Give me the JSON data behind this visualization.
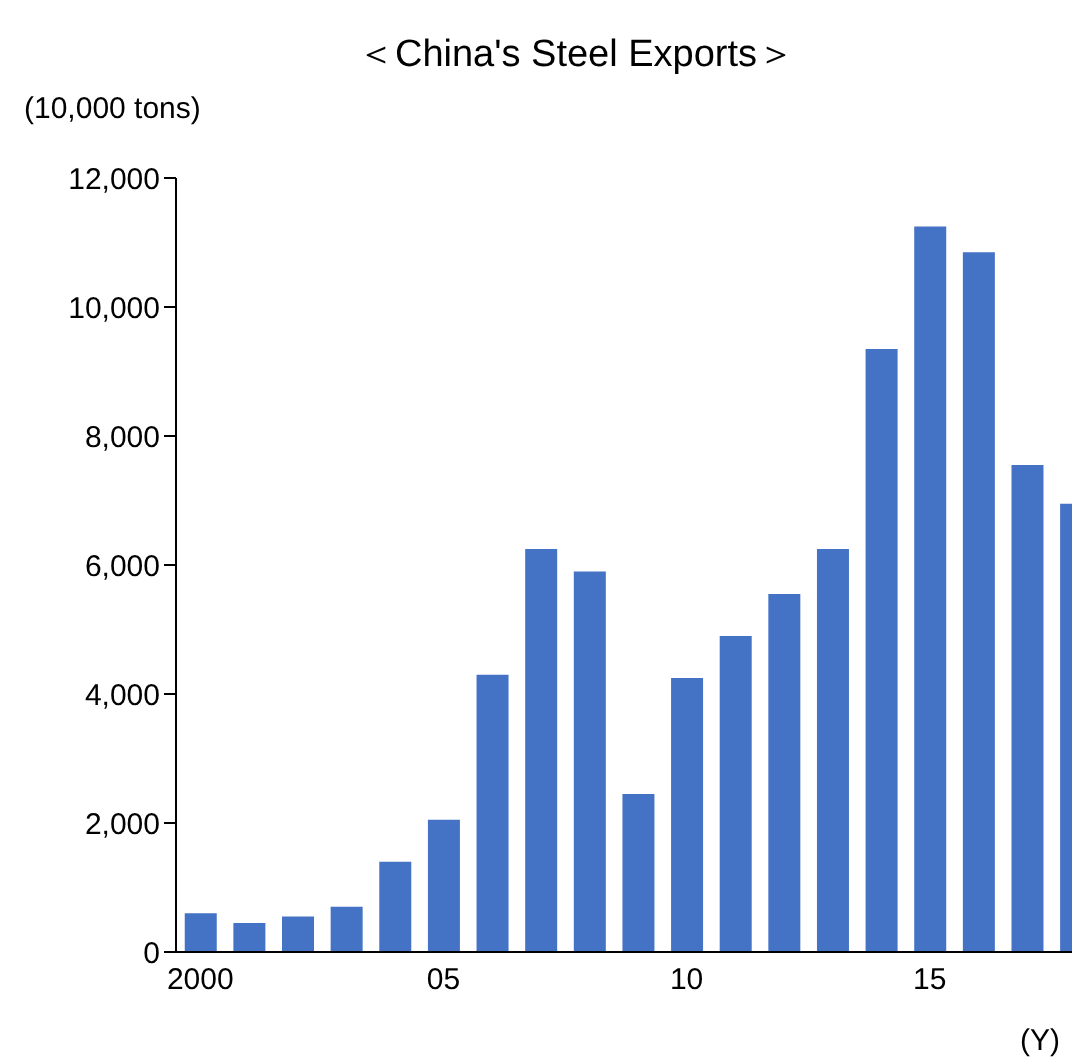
{
  "chart_data": {
    "type": "bar",
    "title": "＜China's Steel Exports＞",
    "ylabel": "(10,000 tons)",
    "xlabel": "(Y)",
    "categories": [
      "2000",
      null,
      null,
      null,
      null,
      "05",
      null,
      null,
      null,
      null,
      "10",
      null,
      null,
      null,
      null,
      "15",
      null,
      null,
      null
    ],
    "values": [
      600,
      450,
      550,
      700,
      1400,
      2050,
      4300,
      6250,
      5900,
      2450,
      4250,
      4900,
      5550,
      6250,
      9350,
      11250,
      10850,
      7550,
      6950
    ],
    "color": "#4472c4",
    "ylim": [
      0,
      12000
    ],
    "yticks": [
      0,
      {
        "value": 2000,
        "label": "2,000"
      },
      {
        "value": 4000,
        "label": "4,000"
      },
      {
        "value": 6000,
        "label": "6,000"
      },
      {
        "value": 8000,
        "label": "8,000"
      },
      {
        "value": 10000,
        "label": "10,000"
      },
      {
        "value": 12000,
        "label": "12,000"
      }
    ],
    "grid": false,
    "legend": false
  }
}
